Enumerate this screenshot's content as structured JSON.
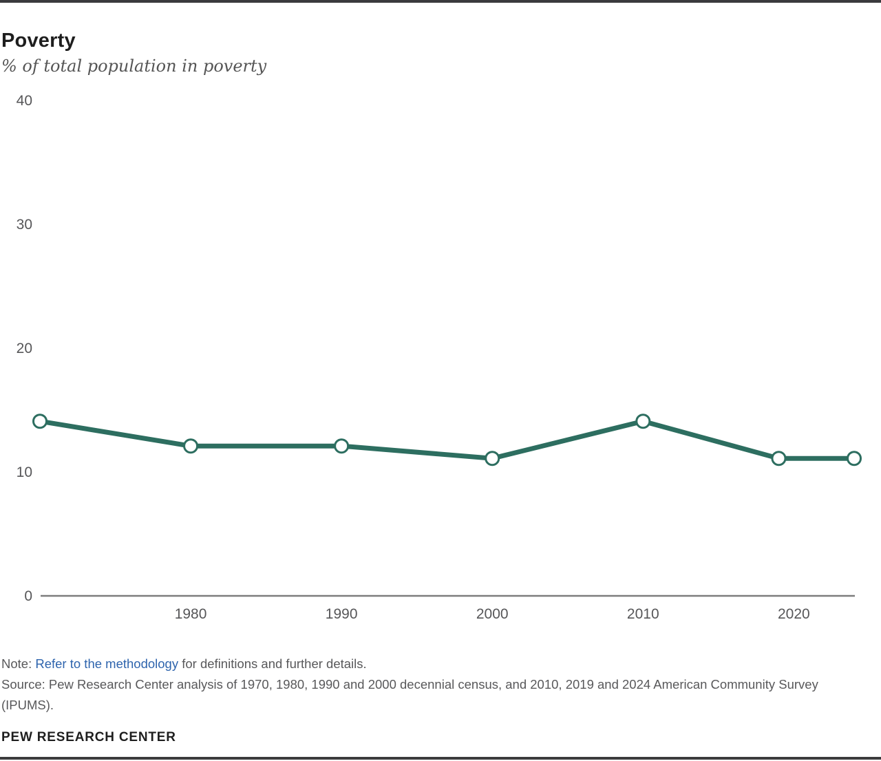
{
  "header": {
    "title": "Poverty",
    "subtitle": "% of total population in poverty"
  },
  "chart_data": {
    "type": "line",
    "title": "Poverty",
    "subtitle": "% of total population in poverty",
    "series": [
      {
        "name": "% of total population in poverty",
        "x": [
          1970,
          1980,
          1990,
          2000,
          2010,
          2019,
          2024
        ],
        "values": [
          14.1,
          12.1,
          12.1,
          11.1,
          14.1,
          11.1,
          11.1
        ]
      }
    ],
    "xlim": [
      1970,
      2024
    ],
    "ylim": [
      0,
      40
    ],
    "y_ticks": [
      0,
      10,
      20,
      30,
      40
    ],
    "x_ticks": [
      1980,
      1990,
      2000,
      2010,
      2020
    ],
    "grid": false,
    "legend": "none",
    "marker": "open-circle",
    "line_color": "#2d6e60"
  },
  "colors": {
    "accent_green": "#2d6e60",
    "marker_fill": "#ffffff",
    "axis_gray": "#7c7c7c",
    "tick_text": "#565658",
    "link_blue": "#2e64ad",
    "rule_dark": "#3b3b3d"
  },
  "footer": {
    "note_prefix": "Note: ",
    "note_link": "Refer to the methodology",
    "note_suffix": " for definitions and further details.",
    "source": "Source: Pew Research Center analysis of 1970, 1980, 1990 and 2000 decennial census, and 2010, 2019 and 2024 American Community Survey (IPUMS).",
    "brand": "PEW RESEARCH CENTER"
  }
}
